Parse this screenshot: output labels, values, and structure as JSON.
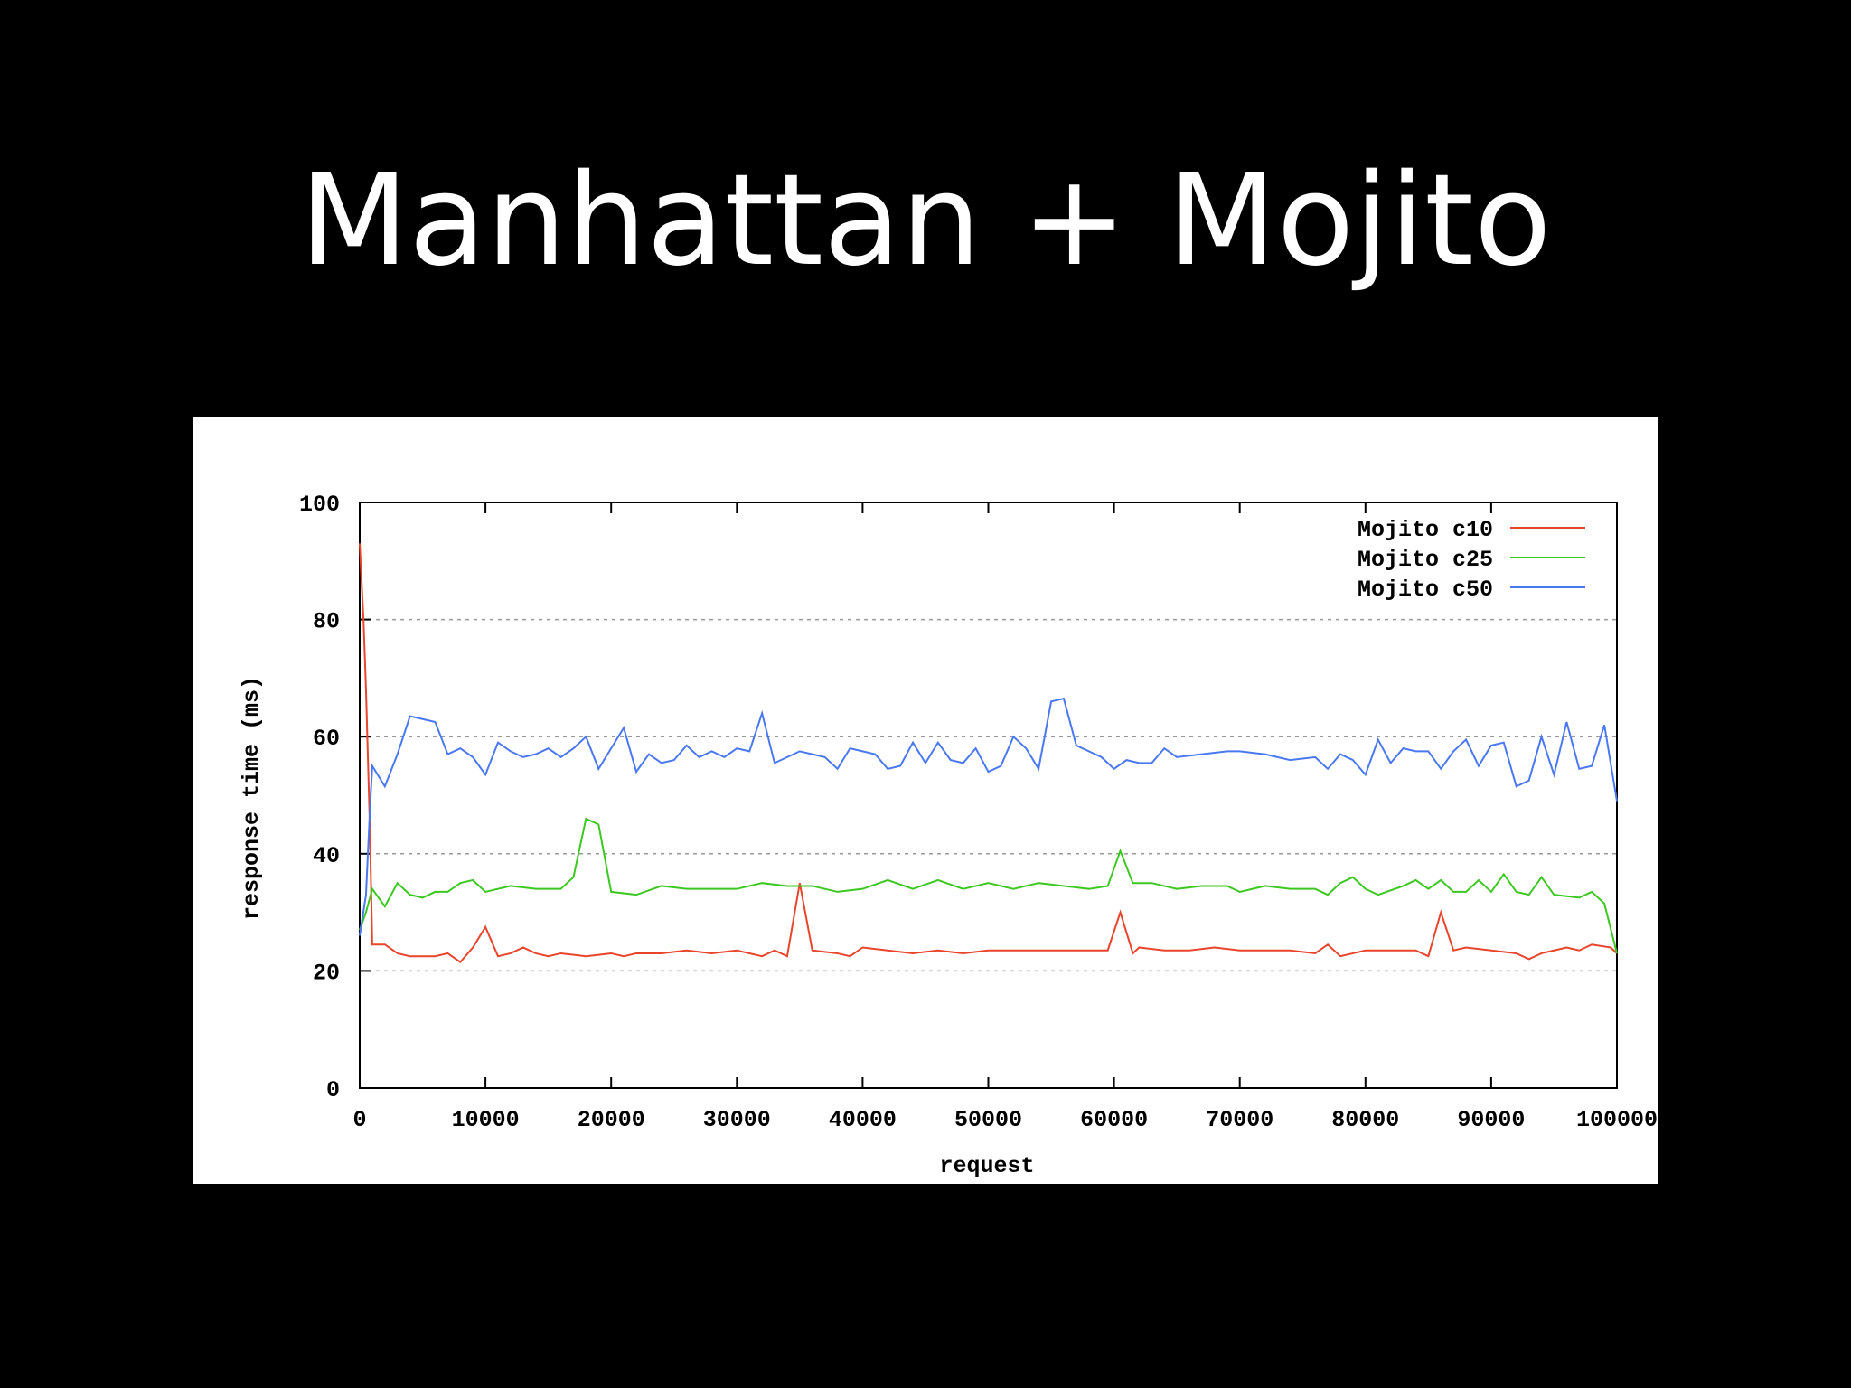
{
  "title": "Manhattan + Mojito",
  "chart_data": {
    "type": "line",
    "xlabel": "request",
    "ylabel": "response time (ms)",
    "xlim": [
      0,
      100000
    ],
    "ylim": [
      0,
      100
    ],
    "xticks": [
      0,
      10000,
      20000,
      30000,
      40000,
      50000,
      60000,
      70000,
      80000,
      90000,
      {
        "value": 100000,
        "label": "100000"
      }
    ],
    "yticks": [
      0,
      20,
      40,
      60,
      80,
      100
    ],
    "grid": true,
    "legend": "top-right",
    "series": [
      {
        "name": "Mojito c10",
        "color": "#e8452c",
        "x": [
          0,
          300,
          500,
          800,
          1000,
          2000,
          3000,
          4000,
          5000,
          6000,
          7000,
          8000,
          9000,
          10000,
          11000,
          12000,
          13000,
          14000,
          15000,
          16000,
          18000,
          20000,
          21000,
          22000,
          24000,
          26000,
          28000,
          30000,
          32000,
          33000,
          34000,
          35000,
          36000,
          38000,
          39000,
          40000,
          42000,
          44000,
          46000,
          48000,
          50000,
          52000,
          54000,
          56000,
          58000,
          59500,
          60500,
          61500,
          62000,
          64000,
          66000,
          68000,
          70000,
          72000,
          74000,
          76000,
          77000,
          78000,
          80000,
          82000,
          84000,
          85000,
          86000,
          87000,
          88000,
          90000,
          92000,
          93000,
          94000,
          95000,
          96000,
          97000,
          98000,
          99500,
          100000
        ],
        "values": [
          93,
          80,
          68,
          45,
          24.5,
          24.5,
          23,
          22.5,
          22.5,
          22.5,
          23,
          21.5,
          24,
          27.5,
          22.5,
          23,
          24,
          23,
          22.5,
          23,
          22.5,
          23,
          22.5,
          23,
          23,
          23.5,
          23,
          23.5,
          22.5,
          23.5,
          22.5,
          35,
          23.5,
          23,
          22.5,
          24,
          23.5,
          23,
          23.5,
          23,
          23.5,
          23.5,
          23.5,
          23.5,
          23.5,
          23.5,
          30,
          23,
          24,
          23.5,
          23.5,
          24,
          23.5,
          23.5,
          23.5,
          23,
          24.5,
          22.5,
          23.5,
          23.5,
          23.5,
          22.5,
          30,
          23.5,
          24,
          23.5,
          23,
          22,
          23,
          23.5,
          24,
          23.5,
          24.5,
          24,
          23
        ]
      },
      {
        "name": "Mojito c25",
        "color": "#3cc820",
        "x": [
          0,
          500,
          1000,
          2000,
          3000,
          4000,
          5000,
          6000,
          7000,
          8000,
          9000,
          10000,
          12000,
          14000,
          16000,
          17000,
          18000,
          19000,
          20000,
          22000,
          24000,
          26000,
          28000,
          30000,
          32000,
          34000,
          36000,
          38000,
          40000,
          42000,
          44000,
          46000,
          48000,
          50000,
          52000,
          54000,
          56000,
          58000,
          59500,
          60500,
          61500,
          63000,
          65000,
          67000,
          69000,
          70000,
          72000,
          74000,
          76000,
          77000,
          78000,
          79000,
          80000,
          81000,
          83000,
          84000,
          85000,
          86000,
          87000,
          88000,
          89000,
          90000,
          91000,
          92000,
          93000,
          94000,
          95000,
          97000,
          98000,
          99000,
          100000
        ],
        "values": [
          27,
          30,
          34,
          31,
          35,
          33,
          32.5,
          33.5,
          33.5,
          35,
          35.5,
          33.5,
          34.5,
          34,
          34,
          36,
          46,
          45,
          33.5,
          33,
          34.5,
          34,
          34,
          34,
          35,
          34.5,
          34.5,
          33.5,
          34,
          35.5,
          34,
          35.5,
          34,
          35,
          34,
          35,
          34.5,
          34,
          34.5,
          40.5,
          35,
          35,
          34,
          34.5,
          34.5,
          33.5,
          34.5,
          34,
          34,
          33,
          35,
          36,
          34,
          33,
          34.5,
          35.5,
          34,
          35.5,
          33.5,
          33.5,
          35.5,
          33.5,
          36.5,
          33.5,
          33,
          36,
          33,
          32.5,
          33.5,
          31.5,
          23
        ]
      },
      {
        "name": "Mojito c50",
        "color": "#4a78f0",
        "x": [
          0,
          500,
          800,
          1000,
          2000,
          3000,
          4000,
          5000,
          6000,
          7000,
          8000,
          9000,
          10000,
          11000,
          12000,
          13000,
          14000,
          15000,
          16000,
          17000,
          18000,
          19000,
          20000,
          21000,
          22000,
          23000,
          24000,
          25000,
          26000,
          27000,
          28000,
          29000,
          30000,
          31000,
          32000,
          33000,
          34000,
          35000,
          36000,
          37000,
          38000,
          39000,
          40000,
          41000,
          42000,
          43000,
          44000,
          45000,
          46000,
          47000,
          48000,
          49000,
          50000,
          51000,
          52000,
          53000,
          54000,
          55000,
          56000,
          57000,
          58000,
          59000,
          60000,
          61000,
          62000,
          63000,
          64000,
          65000,
          67000,
          69000,
          70000,
          72000,
          74000,
          76000,
          77000,
          78000,
          79000,
          80000,
          81000,
          82000,
          83000,
          84000,
          85000,
          86000,
          87000,
          88000,
          89000,
          90000,
          91000,
          92000,
          93000,
          94000,
          95000,
          96000,
          97000,
          98000,
          99000,
          100000
        ],
        "values": [
          26,
          33,
          47,
          55,
          51.5,
          57,
          63.5,
          63,
          62.5,
          57,
          58,
          56.5,
          53.5,
          59,
          57.5,
          56.5,
          57,
          58,
          56.5,
          58,
          60,
          54.5,
          58,
          61.5,
          54,
          57,
          55.5,
          56,
          58.5,
          56.5,
          57.5,
          56.5,
          58,
          57.5,
          64,
          55.5,
          56.5,
          57.5,
          57,
          56.5,
          54.5,
          58,
          57.5,
          57,
          54.5,
          55,
          59,
          55.5,
          59,
          56,
          55.5,
          58,
          54,
          55,
          60,
          58,
          54.5,
          66,
          66.5,
          58.5,
          57.5,
          56.5,
          54.5,
          56,
          55.5,
          55.5,
          58,
          56.5,
          57,
          57.5,
          57.5,
          57,
          56,
          56.5,
          54.5,
          57,
          56,
          53.5,
          59.5,
          55.5,
          58,
          57.5,
          57.5,
          54.5,
          57.5,
          59.5,
          55,
          58.5,
          59,
          51.5,
          52.5,
          60,
          53.5,
          62.5,
          54.5,
          55,
          62,
          49
        ]
      }
    ]
  }
}
